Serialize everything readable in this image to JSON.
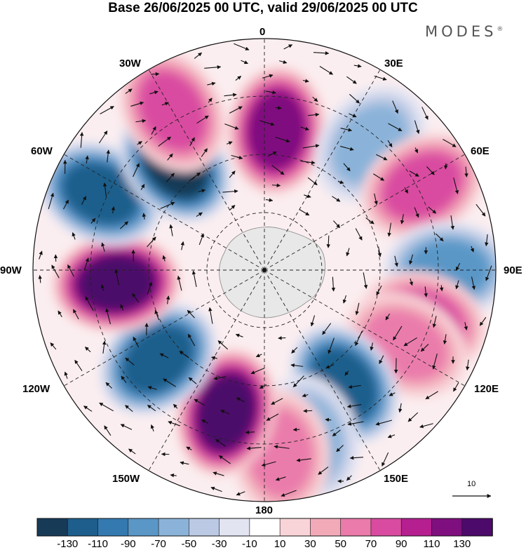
{
  "title": "Base 26/06/2025 00 UTC, valid 29/06/2025 00 UTC",
  "brand": "MODES",
  "brand_mark": "®",
  "longitude_labels": {
    "lon_0": "0",
    "lon_30e": "30E",
    "lon_60e": "60E",
    "lon_90e": "90E",
    "lon_120e": "120E",
    "lon_150e": "150E",
    "lon_180": "180",
    "lon_150w": "150W",
    "lon_120w": "120W",
    "lon_90w": "90W",
    "lon_60w": "60W",
    "lon_30w": "30W"
  },
  "reference_vector": {
    "label": "10"
  },
  "colorbar": {
    "levels": [
      "-130",
      "-110",
      "-90",
      "-70",
      "-50",
      "-30",
      "-10",
      "10",
      "30",
      "50",
      "70",
      "90",
      "110",
      "130"
    ],
    "colors": [
      "#173a57",
      "#1e5e8c",
      "#3479b0",
      "#5a97c7",
      "#8bb3d9",
      "#bcc9e4",
      "#e3e4f2",
      "#ffffff",
      "#f8d4d8",
      "#f2aab9",
      "#ea7bab",
      "#d94ba0",
      "#b51f8f",
      "#7f0f7f",
      "#4c0a6a"
    ]
  },
  "chart_data": {
    "type": "heatmap",
    "projection": "south polar stereographic",
    "field": "anomaly with wind vectors",
    "color_range": [
      -130,
      130
    ],
    "anomaly_centers": [
      {
        "lon": 5,
        "sign": "positive",
        "value": 110
      },
      {
        "lon": 40,
        "sign": "negative",
        "value": -50
      },
      {
        "lon": 62,
        "sign": "positive",
        "value": 70
      },
      {
        "lon": 90,
        "sign": "negative",
        "value": -70
      },
      {
        "lon": 108,
        "sign": "positive",
        "value": 70
      },
      {
        "lon": 118,
        "sign": "positive",
        "value": 50
      },
      {
        "lon": 145,
        "sign": "negative",
        "value": -110
      },
      {
        "lon": 165,
        "sign": "negative",
        "value": -50
      },
      {
        "lon": 175,
        "sign": "positive",
        "value": 50
      },
      {
        "lon": -165,
        "sign": "positive",
        "value": 130
      },
      {
        "lon": -130,
        "sign": "negative",
        "value": -110
      },
      {
        "lon": -95,
        "sign": "positive",
        "value": 130
      },
      {
        "lon": -65,
        "sign": "negative",
        "value": -110
      },
      {
        "lon": -40,
        "sign": "negative",
        "value": -130
      },
      {
        "lon": -30,
        "sign": "positive",
        "value": 70
      }
    ]
  }
}
